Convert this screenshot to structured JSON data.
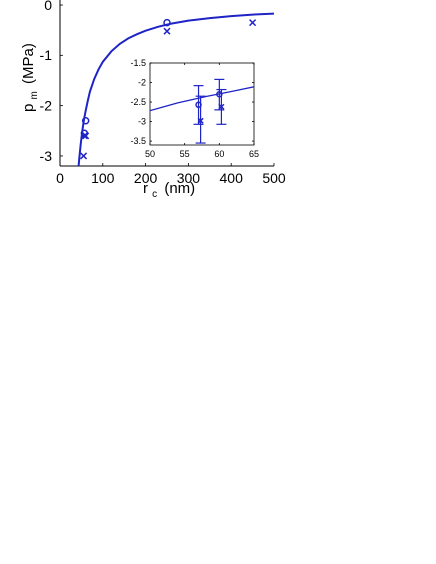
{
  "chart_data": [
    {
      "type": "line",
      "panel": "main",
      "xlabel": "r",
      "xlabel_sub": "c",
      "xlabel_unit": "(nm)",
      "ylabel": "p",
      "ylabel_sub": "m",
      "ylabel_unit": "(MPa)",
      "xlim": [
        0,
        500
      ],
      "ylim": [
        -3.2,
        0.1
      ],
      "x_ticks": [
        0,
        100,
        200,
        300,
        400,
        500
      ],
      "x_tick_labels": [
        "0",
        "100",
        "200",
        "300",
        "400",
        "500"
      ],
      "y_ticks": [
        -3,
        -2,
        -1,
        0
      ],
      "y_tick_labels": [
        "-3",
        "-2",
        "-1",
        "0"
      ],
      "grid": false,
      "color": "#1f24c6",
      "series": [
        {
          "kind": "curve",
          "formula_note": "",
          "x": [
            40,
            42,
            45,
            48,
            50,
            53,
            56,
            60,
            65,
            70,
            80,
            90,
            100,
            120,
            140,
            160,
            180,
            200,
            230,
            260,
            300,
            350,
            400,
            450,
            500
          ],
          "y": [
            -3.6,
            -3.35,
            -3.05,
            -2.8,
            -2.65,
            -2.45,
            -2.28,
            -2.1,
            -1.9,
            -1.72,
            -1.47,
            -1.28,
            -1.13,
            -0.92,
            -0.77,
            -0.66,
            -0.58,
            -0.51,
            -0.43,
            -0.37,
            -0.31,
            -0.26,
            -0.22,
            -0.19,
            -0.17
          ]
        },
        {
          "kind": "markers",
          "marker": "circle",
          "x": [
            57,
            60,
            250
          ],
          "y": [
            -2.55,
            -2.3,
            -0.35
          ]
        },
        {
          "kind": "markers",
          "marker": "x",
          "x": [
            55,
            57,
            60,
            250,
            450
          ],
          "y": [
            -3.0,
            -2.6,
            -2.6,
            -0.52,
            -0.35
          ]
        }
      ]
    },
    {
      "type": "line",
      "panel": "inset",
      "xlim": [
        50,
        65
      ],
      "ylim": [
        -3.6,
        -1.5
      ],
      "x_ticks": [
        50,
        55,
        60,
        65
      ],
      "x_tick_labels": [
        "50",
        "55",
        "60",
        "65"
      ],
      "y_ticks": [
        -3.5,
        -3,
        -2.5,
        -2,
        -1.5
      ],
      "y_tick_labels": [
        "-3.5",
        "-3",
        "-2.5",
        "-2",
        "-1.5"
      ],
      "grid": false,
      "color": "#1f24c6",
      "series": [
        {
          "kind": "curve",
          "x": [
            50,
            52,
            54,
            56,
            58,
            60,
            62,
            65
          ],
          "y": [
            -2.72,
            -2.62,
            -2.52,
            -2.44,
            -2.36,
            -2.29,
            -2.22,
            -2.11
          ]
        },
        {
          "kind": "errorbar",
          "marker": "circle",
          "x": [
            57,
            60
          ],
          "y": [
            -2.57,
            -2.3
          ],
          "ylow": [
            -3.07,
            -2.7
          ],
          "yhigh": [
            -2.08,
            -1.92
          ]
        },
        {
          "kind": "errorbar",
          "marker": "x",
          "x": [
            57.3,
            60.3
          ],
          "y": [
            -2.98,
            -2.62
          ],
          "ylow": [
            -3.55,
            -3.07
          ],
          "yhigh": [
            -2.35,
            -2.18
          ]
        }
      ]
    }
  ]
}
